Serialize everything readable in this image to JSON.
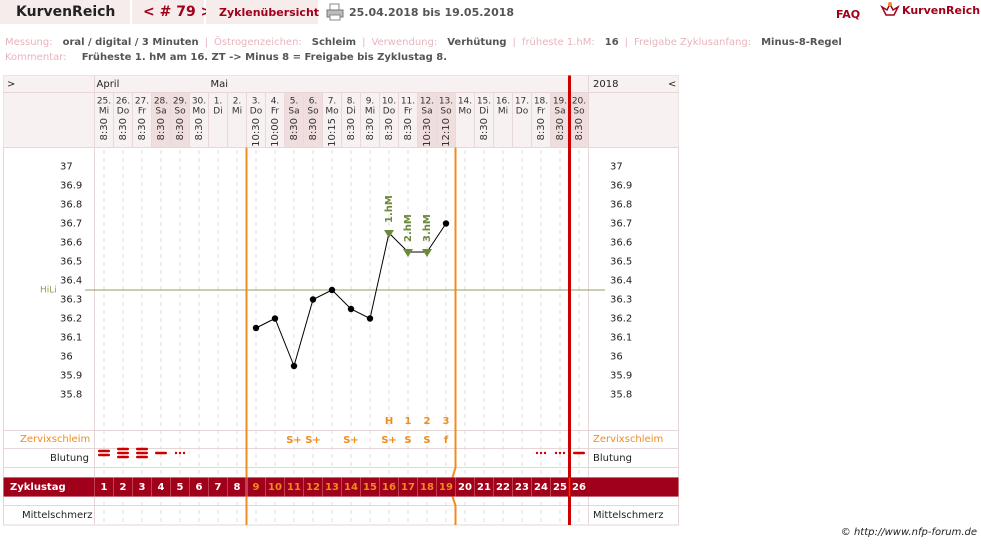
{
  "header": {
    "brand": "KurvenReich",
    "nav": "< # 79 >",
    "overview": "Zyklenübersicht",
    "range": "25.04.2018 bis 19.05.2018",
    "faq": "FAQ",
    "logo": "KurvenReich"
  },
  "info": [
    [
      "Messung:",
      "oral / digital / 3 Minuten"
    ],
    [
      "Östrogenzeichen:",
      "Schleim"
    ],
    [
      "Verwendung:",
      "Verhütung"
    ],
    [
      "früheste 1.hM:",
      "16"
    ],
    [
      "Freigabe Zyklusanfang:",
      "Minus-8-Regel"
    ]
  ],
  "comment": [
    "Kommentar:",
    "Früheste 1. hM am 16. ZT -> Minus 8 = Freigabe bis Zyklustag 8."
  ],
  "footer": "© http://www.nfp-forum.de",
  "chart_data": {
    "type": "line",
    "nav_left": ">",
    "nav_right": "<",
    "year": "2018",
    "months": [
      "April",
      null,
      null,
      null,
      null,
      null,
      "Mai",
      null,
      null,
      null,
      null,
      null,
      null,
      null,
      null,
      null,
      null,
      null,
      null,
      null,
      null,
      null,
      null,
      null,
      null,
      null
    ],
    "dates": [
      "25.",
      "26.",
      "27.",
      "28.",
      "29.",
      "30.",
      "1.",
      "2.",
      "3.",
      "4.",
      "5.",
      "6.",
      "7.",
      "8.",
      "9.",
      "10.",
      "11.",
      "12.",
      "13.",
      "14.",
      "15.",
      "16.",
      "17.",
      "18.",
      "19.",
      "20."
    ],
    "weekdays": [
      "Mi",
      "Do",
      "Fr",
      "Sa",
      "So",
      "Mo",
      "Di",
      "Mi",
      "Do",
      "Fr",
      "Sa",
      "So",
      "Mo",
      "Di",
      "Mi",
      "Do",
      "Fr",
      "Sa",
      "So",
      "Mo",
      "Di",
      "Mi",
      "Do",
      "Fr",
      "Sa",
      "So"
    ],
    "times": [
      "8:30",
      "8:30",
      "8:30",
      "8:30",
      "8:30",
      "8:30",
      null,
      null,
      "10:30",
      "10:00",
      "8:30",
      "8:30",
      "10:15",
      "8:30",
      "8:30",
      "8:30",
      "8:30",
      "10:30",
      "12:10",
      null,
      "8:30",
      null,
      null,
      "8:30",
      "8:30",
      "8:30"
    ],
    "values": [
      null,
      null,
      null,
      null,
      null,
      null,
      null,
      null,
      36.15,
      36.2,
      35.95,
      36.3,
      36.35,
      36.25,
      36.2,
      36.65,
      36.55,
      36.55,
      36.7,
      null,
      null,
      null,
      null,
      null,
      null,
      null
    ],
    "color": "#000000",
    "ylim": [
      35.6,
      37.1
    ],
    "yticks": [
      35.8,
      35.9,
      36,
      36.1,
      36.2,
      36.3,
      36.4,
      36.5,
      36.6,
      36.7,
      36.8,
      36.9,
      37
    ],
    "hline": {
      "label": "HiLi",
      "value": 36.35,
      "color": "#8aa060"
    },
    "hm_labels": [
      null,
      null,
      null,
      null,
      null,
      null,
      null,
      null,
      null,
      null,
      null,
      null,
      null,
      null,
      null,
      "1.hM",
      "2.hM",
      "3.hM",
      null,
      null,
      null,
      null,
      null,
      null,
      null,
      null
    ],
    "hm_color": "#6a8a3a",
    "peak_labels": [
      null,
      null,
      null,
      null,
      null,
      null,
      null,
      null,
      null,
      null,
      null,
      null,
      null,
      null,
      null,
      "H",
      "1",
      "2",
      "3",
      null,
      null,
      null,
      null,
      null,
      null,
      null
    ],
    "cervix_label": "Zervixschleim",
    "cervix": [
      null,
      null,
      null,
      null,
      null,
      null,
      null,
      null,
      null,
      null,
      "S+",
      "S+",
      null,
      "S+",
      null,
      "S+",
      "S",
      "S",
      "f",
      null,
      null,
      null,
      null,
      null,
      null,
      null
    ],
    "bleeding_label": "Blutung",
    "bleeding": [
      3,
      4,
      4,
      2,
      1,
      null,
      null,
      null,
      null,
      null,
      null,
      null,
      null,
      null,
      null,
      null,
      null,
      null,
      null,
      null,
      null,
      null,
      null,
      1,
      1,
      2
    ],
    "cycle_label": "Zyklustag",
    "cycle_days": [
      1,
      2,
      3,
      4,
      5,
      6,
      7,
      8,
      9,
      10,
      11,
      12,
      13,
      14,
      15,
      16,
      17,
      18,
      19,
      20,
      21,
      22,
      23,
      24,
      25,
      26
    ],
    "pain_label": "Mittelschmerz",
    "fertile_days": [
      9,
      19
    ],
    "new_cycle_day": 26,
    "accent": "#f08c1e",
    "brand_color": "#a0001a"
  }
}
